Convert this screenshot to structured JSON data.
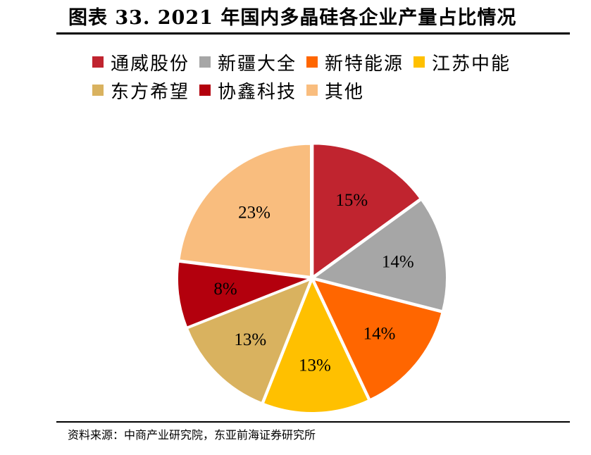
{
  "title": "图表 33. 2021 年国内多晶硅各企业产量占比情况",
  "source": "资料来源：中商产业研究院，东亚前海证券研究所",
  "chart_data": {
    "type": "pie",
    "unit": "%",
    "legend_position": "top",
    "slices": [
      {
        "name": "通威股份",
        "value": 15,
        "label": "15%",
        "color": "#c0242f"
      },
      {
        "name": "新疆大全",
        "value": 14,
        "label": "14%",
        "color": "#a6a6a6"
      },
      {
        "name": "新特能源",
        "value": 14,
        "label": "14%",
        "color": "#ff6600"
      },
      {
        "name": "江苏中能",
        "value": 13,
        "label": "13%",
        "color": "#ffc000"
      },
      {
        "name": "东方希望",
        "value": 13,
        "label": "13%",
        "color": "#d9b25f"
      },
      {
        "name": "协鑫科技",
        "value": 8,
        "label": "8%",
        "color": "#b3000d"
      },
      {
        "name": "其他",
        "value": 23,
        "label": "23%",
        "color": "#f9bd7e"
      }
    ]
  }
}
